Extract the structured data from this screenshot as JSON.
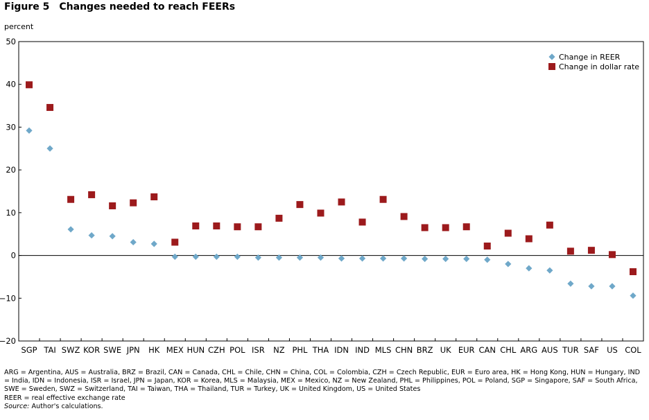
{
  "figure": {
    "number": "Figure 5",
    "title": "Changes needed to reach FEERs"
  },
  "chart_data": {
    "type": "scatter",
    "title": "Changes needed to reach FEERs",
    "ylabel": "percent",
    "xlabel": "",
    "ylim": [
      -20,
      50
    ],
    "yticks": [
      -20,
      -10,
      0,
      10,
      20,
      30,
      40,
      50
    ],
    "grid": false,
    "legend_position": "top-right",
    "categories": [
      "SGP",
      "TAI",
      "SWZ",
      "KOR",
      "SWE",
      "JPN",
      "HK",
      "MEX",
      "HUN",
      "CZH",
      "POL",
      "ISR",
      "NZ",
      "PHL",
      "THA",
      "IDN",
      "IND",
      "MLS",
      "CHN",
      "BRZ",
      "UK",
      "EUR",
      "CAN",
      "CHL",
      "ARG",
      "AUS",
      "TUR",
      "SAF",
      "US",
      "COL"
    ],
    "series": [
      {
        "name": "Change in REER",
        "marker": "diamond",
        "color": "#6fa8c9",
        "values": [
          29.2,
          25.0,
          6.1,
          4.7,
          4.5,
          3.1,
          2.7,
          -0.3,
          -0.3,
          -0.3,
          -0.3,
          -0.5,
          -0.5,
          -0.5,
          -0.5,
          -0.7,
          -0.7,
          -0.7,
          -0.7,
          -0.8,
          -0.8,
          -0.8,
          -1.0,
          -2.0,
          -3.0,
          -3.5,
          -6.6,
          -7.2,
          -7.2,
          -9.4
        ]
      },
      {
        "name": "Change in dollar rate",
        "marker": "square",
        "color": "#9c1a1c",
        "values": [
          39.9,
          34.6,
          13.1,
          14.2,
          11.6,
          12.3,
          13.7,
          3.1,
          6.9,
          6.9,
          6.7,
          6.7,
          8.7,
          11.9,
          9.9,
          12.5,
          7.8,
          13.1,
          9.1,
          6.5,
          6.5,
          6.7,
          2.2,
          5.2,
          3.9,
          7.1,
          1.0,
          1.2,
          0.2,
          -3.8
        ]
      }
    ]
  },
  "notes": {
    "abbreviations": "ARG = Argentina, AUS = Australia, BRZ = Brazil, CAN = Canada, CHL = Chile, CHN = China, COL = Colombia, CZH = Czech Republic, EUR = Euro area, HK = Hong Kong, HUN = Hungary, IND = India, IDN = Indonesia,  ISR = Israel, JPN = Japan, KOR = Korea, MLS = Malaysia, MEX = Mexico, NZ = New Zealand, PHL = Philippines, POL = Poland, SGP = Singapore, SAF = South Africa, SWE = Sweden, SWZ = Switzerland, TAI = Taiwan, THA = Thailand, TUR = Turkey, UK = United Kingdom, US = United States",
    "reer": "REER = real effective exchange rate",
    "source_label": "Source:",
    "source_text": " Author's calculations."
  }
}
